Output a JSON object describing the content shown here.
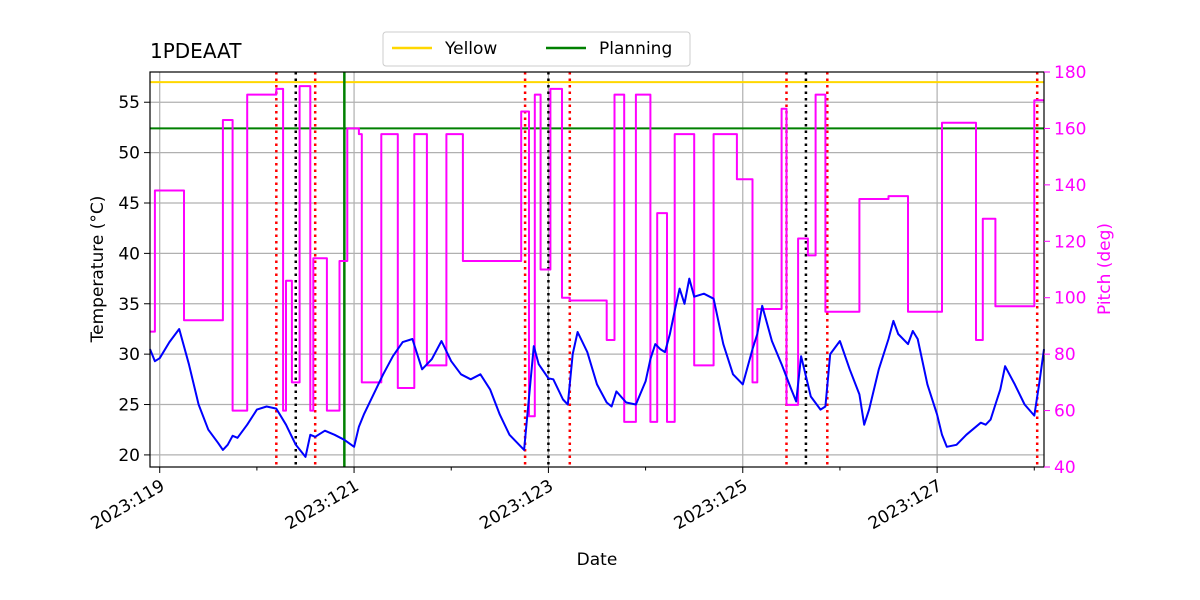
{
  "chart_data": {
    "type": "line",
    "title": "1PDEAAT",
    "xlabel": "Date",
    "ylabel_left": "Temperature ($^\\circ$C)",
    "ylabel_right": "Pitch (deg)",
    "xlim": [
      118.9,
      128.1
    ],
    "ylim_left": [
      18.8,
      58.0
    ],
    "ylim_right": [
      40,
      180
    ],
    "x_ticks": [
      {
        "value": 119,
        "label": "2023:119"
      },
      {
        "value": 121,
        "label": "2023:121"
      },
      {
        "value": 123,
        "label": "2023:123"
      },
      {
        "value": 125,
        "label": "2023:125"
      },
      {
        "value": 127,
        "label": "2023:127"
      }
    ],
    "y_ticks_left": [
      20,
      25,
      30,
      35,
      40,
      45,
      50,
      55
    ],
    "y_ticks_right": [
      40,
      60,
      80,
      100,
      120,
      140,
      160,
      180
    ],
    "grid": true,
    "legend": {
      "position": "top-center",
      "entries": [
        {
          "name": "Yellow",
          "color": "#ffd700"
        },
        {
          "name": "Planning",
          "color": "#008000"
        }
      ]
    },
    "hlines": [
      {
        "name": "Yellow",
        "y": 57.0,
        "color": "#ffd700"
      },
      {
        "name": "Planning",
        "y": 52.4,
        "color": "#008000"
      }
    ],
    "vlines": [
      {
        "x": 120.2,
        "color": "#ff0000",
        "style": "dotted"
      },
      {
        "x": 120.4,
        "color": "#000000",
        "style": "dotted"
      },
      {
        "x": 120.6,
        "color": "#ff0000",
        "style": "dotted"
      },
      {
        "x": 120.9,
        "color": "#008000",
        "style": "solid"
      },
      {
        "x": 122.76,
        "color": "#ff0000",
        "style": "dotted"
      },
      {
        "x": 123.0,
        "color": "#000000",
        "style": "dotted"
      },
      {
        "x": 123.22,
        "color": "#ff0000",
        "style": "dotted"
      },
      {
        "x": 125.45,
        "color": "#ff0000",
        "style": "dotted"
      },
      {
        "x": 125.65,
        "color": "#000000",
        "style": "dotted"
      },
      {
        "x": 125.87,
        "color": "#ff0000",
        "style": "dotted"
      },
      {
        "x": 128.03,
        "color": "#ff0000",
        "style": "dotted"
      }
    ],
    "series": [
      {
        "name": "Temperature",
        "axis": "left",
        "color": "#0000ff",
        "x": [
          118.9,
          118.95,
          119.0,
          119.1,
          119.2,
          119.3,
          119.4,
          119.5,
          119.6,
          119.65,
          119.7,
          119.75,
          119.8,
          119.9,
          120.0,
          120.1,
          120.2,
          120.3,
          120.35,
          120.4,
          120.5,
          120.55,
          120.6,
          120.7,
          120.8,
          120.9,
          121.0,
          121.05,
          121.1,
          121.2,
          121.3,
          121.4,
          121.5,
          121.6,
          121.65,
          121.7,
          121.8,
          121.9,
          122.0,
          122.1,
          122.2,
          122.3,
          122.4,
          122.5,
          122.6,
          122.75,
          122.85,
          122.9,
          123.0,
          123.05,
          123.15,
          123.2,
          123.25,
          123.3,
          123.4,
          123.5,
          123.6,
          123.65,
          123.7,
          123.8,
          123.9,
          124.0,
          124.05,
          124.1,
          124.15,
          124.2,
          124.25,
          124.3,
          124.35,
          124.4,
          124.45,
          124.5,
          124.6,
          124.7,
          124.8,
          124.9,
          125.0,
          125.1,
          125.15,
          125.2,
          125.3,
          125.4,
          125.5,
          125.55,
          125.6,
          125.7,
          125.8,
          125.85,
          125.9,
          126.0,
          126.1,
          126.2,
          126.25,
          126.3,
          126.4,
          126.5,
          126.55,
          126.6,
          126.7,
          126.75,
          126.8,
          126.9,
          127.0,
          127.05,
          127.1,
          127.2,
          127.3,
          127.4,
          127.45,
          127.5,
          127.55,
          127.6,
          127.65,
          127.7,
          127.8,
          127.9,
          128.0,
          128.05,
          128.1
        ],
        "values": [
          30.5,
          29.3,
          29.6,
          31.2,
          32.5,
          29.0,
          25.0,
          22.5,
          21.2,
          20.5,
          21.0,
          21.9,
          21.7,
          23.0,
          24.5,
          24.8,
          24.6,
          23.0,
          22.0,
          21.0,
          19.8,
          22.0,
          21.8,
          22.4,
          22.0,
          21.5,
          20.8,
          22.8,
          24.0,
          26.0,
          28.0,
          29.8,
          31.2,
          31.5,
          30.0,
          28.5,
          29.5,
          31.3,
          29.3,
          28.0,
          27.5,
          28.0,
          26.5,
          24.0,
          22.0,
          20.5,
          30.8,
          29.0,
          27.6,
          27.5,
          25.5,
          25.0,
          30.0,
          32.2,
          30.2,
          27.0,
          25.2,
          24.8,
          26.3,
          25.2,
          25.0,
          27.3,
          29.5,
          31.0,
          30.5,
          30.2,
          32.0,
          34.3,
          36.5,
          35.0,
          37.5,
          35.7,
          36.0,
          35.5,
          31.0,
          28.0,
          27.0,
          30.5,
          32.0,
          34.8,
          31.3,
          29.0,
          26.5,
          25.3,
          29.8,
          25.8,
          24.5,
          24.8,
          30.0,
          31.3,
          28.5,
          26.0,
          23.0,
          24.5,
          28.5,
          31.5,
          33.3,
          32.0,
          31.0,
          32.3,
          31.5,
          27.0,
          24.0,
          22.0,
          20.8,
          21.0,
          22.0,
          22.8,
          23.2,
          23.0,
          23.5,
          25.0,
          26.5,
          28.8,
          27.0,
          25.0,
          23.9,
          27.0,
          30.5
        ]
      },
      {
        "name": "Pitch",
        "axis": "right",
        "color": "#ff00ff",
        "x": [
          118.9,
          118.95,
          118.95,
          119.25,
          119.25,
          119.65,
          119.65,
          119.75,
          119.75,
          119.9,
          119.9,
          120.2,
          120.2,
          120.27,
          120.27,
          120.3,
          120.3,
          120.36,
          120.36,
          120.44,
          120.44,
          120.55,
          120.55,
          120.58,
          120.58,
          120.72,
          120.72,
          120.85,
          120.85,
          120.93,
          120.93,
          121.05,
          121.05,
          121.08,
          121.08,
          121.28,
          121.28,
          121.45,
          121.45,
          121.62,
          121.62,
          121.75,
          121.75,
          121.95,
          121.95,
          122.12,
          122.12,
          122.3,
          122.3,
          122.72,
          122.72,
          122.8,
          122.8,
          122.86,
          122.86,
          122.92,
          122.92,
          123.02,
          123.02,
          123.14,
          123.14,
          123.22,
          123.22,
          123.6,
          123.6,
          123.68,
          123.68,
          123.78,
          123.78,
          123.9,
          123.9,
          124.05,
          124.05,
          124.12,
          124.12,
          124.22,
          124.22,
          124.3,
          124.3,
          124.5,
          124.5,
          124.7,
          124.7,
          124.94,
          124.94,
          125.1,
          125.1,
          125.15,
          125.15,
          125.2,
          125.2,
          125.4,
          125.4,
          125.45,
          125.45,
          125.57,
          125.57,
          125.67,
          125.67,
          125.75,
          125.75,
          125.85,
          125.85,
          126.2,
          126.2,
          126.5,
          126.5,
          126.7,
          126.7,
          127.05,
          127.05,
          127.4,
          127.4,
          127.47,
          127.47,
          127.6,
          127.6,
          128.0,
          128.0,
          128.1
        ],
        "values": [
          88,
          88,
          138,
          138,
          92,
          92,
          163,
          163,
          60,
          60,
          172,
          172,
          174,
          174,
          60,
          60,
          106,
          106,
          70,
          70,
          175,
          175,
          60,
          60,
          114,
          114,
          60,
          60,
          113,
          113,
          160,
          160,
          158,
          158,
          70,
          70,
          158,
          158,
          68,
          68,
          158,
          158,
          76,
          76,
          158,
          158,
          113,
          113,
          113,
          113,
          166,
          166,
          58,
          58,
          172,
          172,
          110,
          110,
          174,
          174,
          100,
          100,
          99,
          99,
          85,
          85,
          172,
          172,
          56,
          56,
          172,
          172,
          56,
          56,
          130,
          130,
          56,
          56,
          158,
          158,
          76,
          76,
          158,
          158,
          142,
          142,
          70,
          70,
          96,
          96,
          96,
          96,
          167,
          167,
          62,
          62,
          121,
          121,
          115,
          115,
          172,
          172,
          95,
          95,
          135,
          135,
          136,
          136,
          95,
          95,
          162,
          162,
          85,
          85,
          128,
          128,
          97,
          97,
          170,
          170
        ]
      }
    ]
  }
}
